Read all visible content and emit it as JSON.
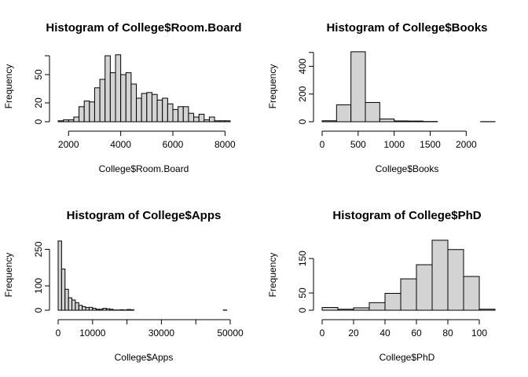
{
  "chart_data": [
    {
      "type": "bar",
      "title": "Histogram of College$Room.Board",
      "xlabel": "College$Room.Board",
      "ylabel": "Frequency",
      "xlim": [
        1600,
        8200
      ],
      "ylim": [
        0,
        75
      ],
      "xticks": [
        2000,
        4000,
        6000,
        8000
      ],
      "xtick_labels": [
        "2000",
        "4000",
        "6000",
        "8000"
      ],
      "yticks": [
        0,
        20,
        50
      ],
      "ytick_labels": [
        "0",
        "20",
        "50"
      ],
      "yaxis_max": 70,
      "bin_edges": [
        1600,
        1800,
        2000,
        2200,
        2400,
        2600,
        2800,
        3000,
        3200,
        3400,
        3600,
        3800,
        4000,
        4200,
        4400,
        4600,
        4800,
        5000,
        5200,
        5400,
        5600,
        5800,
        6000,
        6200,
        6400,
        6600,
        6800,
        7000,
        7200,
        7400,
        7600,
        7800,
        8000,
        8200
      ],
      "values": [
        1,
        2,
        2,
        5,
        16,
        22,
        21,
        36,
        45,
        70,
        52,
        71,
        50,
        52,
        40,
        25,
        30,
        31,
        29,
        23,
        25,
        19,
        13,
        16,
        16,
        9,
        5,
        8,
        2,
        5,
        1,
        1,
        1
      ]
    },
    {
      "type": "bar",
      "title": "Histogram of College$Books",
      "xlabel": "College$Books",
      "ylabel": "Frequency",
      "xlim": [
        0,
        2400
      ],
      "ylim": [
        0,
        510
      ],
      "xticks": [
        0,
        500,
        1000,
        1500,
        2000
      ],
      "xtick_labels": [
        "0",
        "500",
        "1000",
        "1500",
        "2000"
      ],
      "yticks": [
        0,
        200,
        400
      ],
      "ytick_labels": [
        "0",
        "200",
        "400"
      ],
      "yaxis_max": 500,
      "bin_edges": [
        0,
        200,
        400,
        600,
        800,
        1000,
        1200,
        1400,
        1600,
        1800,
        2000,
        2200,
        2400
      ],
      "values": [
        7,
        122,
        505,
        139,
        20,
        6,
        5,
        2,
        0,
        0,
        0,
        1
      ]
    },
    {
      "type": "bar",
      "title": "Histogram of College$Apps",
      "xlabel": "College$Apps",
      "ylabel": "Frequency",
      "xlim": [
        0,
        50000
      ],
      "ylim": [
        0,
        290
      ],
      "xticks": [
        0,
        10000,
        20000,
        30000,
        40000,
        50000
      ],
      "xtick_labels": [
        "0",
        "10000",
        "",
        "30000",
        "",
        "50000"
      ],
      "yticks": [
        0,
        100,
        250
      ],
      "ytick_labels": [
        "0",
        "100",
        "250"
      ],
      "yaxis_max": 250,
      "bin_edges": [
        0,
        1000,
        2000,
        3000,
        4000,
        5000,
        6000,
        7000,
        8000,
        9000,
        10000,
        11000,
        12000,
        13000,
        14000,
        15000,
        16000,
        17000,
        18000,
        19000,
        20000,
        21000,
        22000,
        48000,
        49000
      ],
      "values": [
        284,
        169,
        86,
        51,
        42,
        31,
        20,
        15,
        11,
        12,
        8,
        4,
        4,
        8,
        6,
        4,
        1,
        1,
        2,
        1,
        3,
        2,
        0,
        1
      ]
    },
    {
      "type": "bar",
      "title": "Histogram of College$PhD",
      "xlabel": "College$PhD",
      "ylabel": "Frequency",
      "xlim": [
        0,
        110
      ],
      "ylim": [
        0,
        205
      ],
      "xticks": [
        0,
        20,
        40,
        60,
        80,
        100
      ],
      "xtick_labels": [
        "0",
        "20",
        "40",
        "60",
        "80",
        "100"
      ],
      "yticks": [
        0,
        50,
        150
      ],
      "ytick_labels": [
        "0",
        "50",
        "150"
      ],
      "yaxis_max": 150,
      "bin_edges": [
        0,
        10,
        20,
        30,
        40,
        50,
        60,
        70,
        80,
        90,
        100,
        110
      ],
      "values": [
        8,
        3,
        7,
        22,
        49,
        91,
        132,
        203,
        176,
        98,
        3
      ]
    }
  ]
}
